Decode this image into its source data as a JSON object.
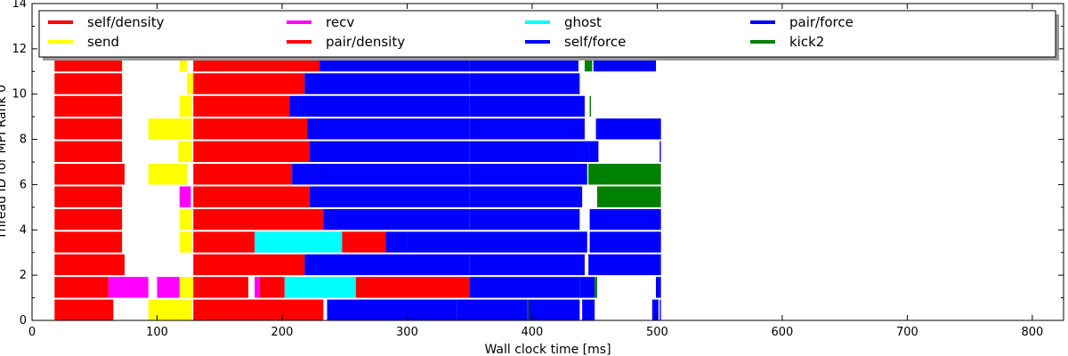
{
  "chart_data": {
    "type": "bar",
    "orientation": "horizontal-timeline",
    "xlabel": "Wall clock time [ms]",
    "ylabel": "Thread ID for MPI Rank 0",
    "xlim": [
      0,
      825
    ],
    "ylim": [
      0,
      14
    ],
    "xticks": [
      0,
      100,
      200,
      300,
      400,
      500,
      600,
      700,
      800
    ],
    "yticks": [
      0,
      2,
      4,
      6,
      8,
      10,
      12,
      14
    ],
    "grid": false,
    "legend_position": "top",
    "series": [
      {
        "name": "self/density",
        "color": "#ff0000"
      },
      {
        "name": "send",
        "color": "#ffff00"
      },
      {
        "name": "recv",
        "color": "#ff00ff"
      },
      {
        "name": "pair/density",
        "color": "#ff0000"
      },
      {
        "name": "ghost",
        "color": "#00ffff"
      },
      {
        "name": "self/force",
        "color": "#0000ff"
      },
      {
        "name": "pair/force",
        "color": "#0000ff"
      },
      {
        "name": "kick2",
        "color": "#008000"
      }
    ],
    "threads": [
      {
        "thread": 0,
        "tasks": [
          [
            "self/density",
            18,
            65
          ],
          [
            "send",
            93,
            128
          ],
          [
            "pair/density",
            129,
            233
          ],
          [
            "self/force",
            236,
            340
          ],
          [
            "pair/force",
            340,
            438
          ],
          [
            "kick2",
            396,
            397
          ],
          [
            "self/force",
            440,
            450
          ],
          [
            "self/force",
            496,
            501
          ],
          [
            "self/force",
            502,
            503
          ]
        ]
      },
      {
        "thread": 1,
        "tasks": [
          [
            "self/density",
            18,
            61
          ],
          [
            "recv",
            61,
            93
          ],
          [
            "recv",
            100,
            118
          ],
          [
            "send",
            118,
            129
          ],
          [
            "pair/density",
            129,
            173
          ],
          [
            "recv",
            178,
            182
          ],
          [
            "pair/density",
            182,
            202
          ],
          [
            "ghost",
            202,
            259
          ],
          [
            "pair/density",
            259,
            350
          ],
          [
            "self/force",
            350,
            438
          ],
          [
            "pair/force",
            438,
            450
          ],
          [
            "kick2",
            450,
            452
          ],
          [
            "self/force",
            499,
            503
          ]
        ]
      },
      {
        "thread": 2,
        "tasks": [
          [
            "self/density",
            18,
            74
          ],
          [
            "pair/density",
            129,
            205
          ],
          [
            "pair/density",
            205,
            218
          ],
          [
            "self/force",
            218,
            350
          ],
          [
            "pair/force",
            350,
            442
          ],
          [
            "pair/force",
            445,
            503
          ]
        ]
      },
      {
        "thread": 3,
        "tasks": [
          [
            "self/density",
            18,
            72
          ],
          [
            "send",
            118,
            128
          ],
          [
            "pair/density",
            129,
            178
          ],
          [
            "ghost",
            178,
            248
          ],
          [
            "pair/density",
            248,
            283
          ],
          [
            "self/force",
            283,
            300
          ],
          [
            "pair/force",
            300,
            444
          ],
          [
            "pair/force",
            446,
            503
          ]
        ]
      },
      {
        "thread": 4,
        "tasks": [
          [
            "self/density",
            18,
            72
          ],
          [
            "send",
            118,
            128
          ],
          [
            "pair/density",
            129,
            233
          ],
          [
            "self/force",
            233,
            350
          ],
          [
            "pair/force",
            350,
            438
          ],
          [
            "pair/force",
            446,
            503
          ]
        ]
      },
      {
        "thread": 5,
        "tasks": [
          [
            "self/density",
            18,
            72
          ],
          [
            "recv",
            118,
            127
          ],
          [
            "pair/density",
            129,
            222
          ],
          [
            "self/force",
            222,
            350
          ],
          [
            "pair/force",
            350,
            440
          ],
          [
            "kick2",
            452,
            503
          ]
        ]
      },
      {
        "thread": 6,
        "tasks": [
          [
            "self/density",
            18,
            74
          ],
          [
            "send",
            93,
            124
          ],
          [
            "pair/density",
            129,
            208
          ],
          [
            "self/force",
            208,
            350
          ],
          [
            "pair/force",
            350,
            444
          ],
          [
            "kick2",
            445,
            503
          ]
        ]
      },
      {
        "thread": 7,
        "tasks": [
          [
            "self/density",
            18,
            72
          ],
          [
            "send",
            117,
            128
          ],
          [
            "pair/density",
            129,
            222
          ],
          [
            "self/force",
            222,
            350
          ],
          [
            "pair/force",
            350,
            446
          ],
          [
            "self/force",
            446,
            453
          ],
          [
            "self/force",
            502,
            503
          ]
        ]
      },
      {
        "thread": 8,
        "tasks": [
          [
            "self/density",
            18,
            72
          ],
          [
            "send",
            93,
            128
          ],
          [
            "pair/density",
            129,
            220
          ],
          [
            "self/force",
            220,
            350
          ],
          [
            "pair/force",
            350,
            442
          ],
          [
            "pair/force",
            451,
            503
          ]
        ]
      },
      {
        "thread": 9,
        "tasks": [
          [
            "self/density",
            18,
            72
          ],
          [
            "send",
            118,
            128
          ],
          [
            "pair/density",
            129,
            206
          ],
          [
            "self/force",
            206,
            350
          ],
          [
            "pair/force",
            350,
            442
          ],
          [
            "kick2",
            446,
            447
          ]
        ]
      },
      {
        "thread": 10,
        "tasks": [
          [
            "self/density",
            18,
            72
          ],
          [
            "send",
            124,
            129
          ],
          [
            "pair/density",
            129,
            218
          ],
          [
            "self/force",
            218,
            350
          ],
          [
            "pair/force",
            350,
            438
          ]
        ]
      },
      {
        "thread": 11,
        "tasks": [
          [
            "self/density",
            18,
            72
          ],
          [
            "send",
            118,
            124
          ],
          [
            "pair/density",
            129,
            230
          ],
          [
            "self/force",
            230,
            350
          ],
          [
            "pair/force",
            350,
            437
          ],
          [
            "kick2",
            442,
            448
          ],
          [
            "pair/force",
            449,
            499
          ]
        ]
      }
    ]
  }
}
